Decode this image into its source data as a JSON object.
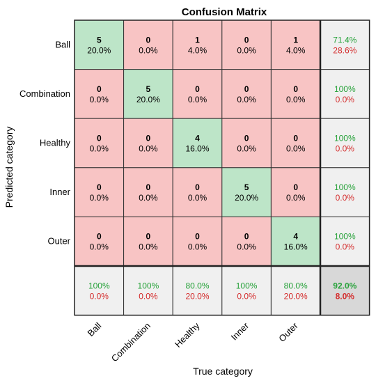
{
  "chart_data": {
    "type": "heatmap",
    "title": "Confusion Matrix",
    "xlabel": "True category",
    "ylabel": "Predicted category",
    "categories": [
      "Ball",
      "Combination",
      "Healthy",
      "Inner",
      "Outer"
    ],
    "counts": [
      [
        5,
        0,
        1,
        0,
        1
      ],
      [
        0,
        5,
        0,
        0,
        0
      ],
      [
        0,
        0,
        4,
        0,
        0
      ],
      [
        0,
        0,
        0,
        5,
        0
      ],
      [
        0,
        0,
        0,
        0,
        4
      ]
    ],
    "percents": [
      [
        "20.0%",
        "0.0%",
        "4.0%",
        "0.0%",
        "4.0%"
      ],
      [
        "0.0%",
        "20.0%",
        "0.0%",
        "0.0%",
        "0.0%"
      ],
      [
        "0.0%",
        "0.0%",
        "16.0%",
        "0.0%",
        "0.0%"
      ],
      [
        "0.0%",
        "0.0%",
        "0.0%",
        "20.0%",
        "0.0%"
      ],
      [
        "0.0%",
        "0.0%",
        "0.0%",
        "0.0%",
        "16.0%"
      ]
    ],
    "row_summary": [
      {
        "correct": "71.4%",
        "incorrect": "28.6%"
      },
      {
        "correct": "100%",
        "incorrect": "0.0%"
      },
      {
        "correct": "100%",
        "incorrect": "0.0%"
      },
      {
        "correct": "100%",
        "incorrect": "0.0%"
      },
      {
        "correct": "100%",
        "incorrect": "0.0%"
      }
    ],
    "column_summary": [
      {
        "correct": "100%",
        "incorrect": "0.0%"
      },
      {
        "correct": "100%",
        "incorrect": "0.0%"
      },
      {
        "correct": "80.0%",
        "incorrect": "20.0%"
      },
      {
        "correct": "100%",
        "incorrect": "0.0%"
      },
      {
        "correct": "80.0%",
        "incorrect": "20.0%"
      }
    ],
    "overall": {
      "correct": "92.0%",
      "incorrect": "8.0%"
    }
  },
  "colors": {
    "diagonal": "#bde5c8",
    "off_diagonal": "#f8c4c4",
    "summary": "#f0f0f0",
    "overall": "#d8d8d8",
    "correct_text": "#27a23a",
    "incorrect_text": "#d42b2b",
    "grid": "#333333"
  }
}
